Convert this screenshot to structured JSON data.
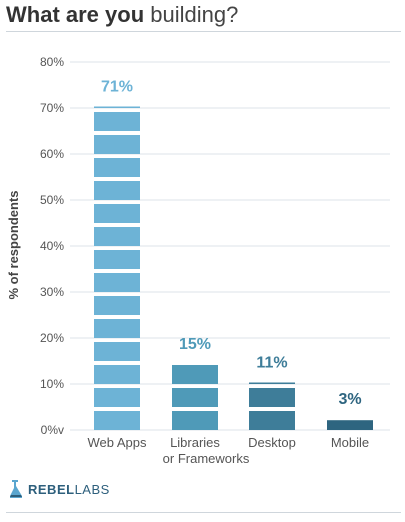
{
  "title": {
    "bold": "What are you",
    "light": "building?"
  },
  "brand": {
    "strong": "REBEL",
    "thin": "LABS"
  },
  "colors": {
    "steps": [
      "#6db3d6",
      "#4f9ab8",
      "#3e7d99",
      "#2e6580"
    ],
    "grid": "#dde3e8"
  },
  "chart_data": {
    "type": "bar",
    "title": "What are you building?",
    "ylabel": "% of respondents",
    "ylim": [
      0,
      80
    ],
    "y_ticks": [
      "0%v",
      "10%",
      "20%",
      "30%",
      "40%",
      "50%",
      "60%",
      "70%",
      "80%"
    ],
    "categories": [
      {
        "line1": "Web Apps",
        "line2": ""
      },
      {
        "line1": "Libraries",
        "line2": "or Frameworks"
      },
      {
        "line1": "Desktop",
        "line2": ""
      },
      {
        "line1": "Mobile",
        "line2": ""
      }
    ],
    "values": [
      71,
      15,
      11,
      3
    ],
    "value_labels": [
      "71%",
      "15%",
      "11%",
      "3%"
    ],
    "grid": true,
    "legend": "none"
  }
}
